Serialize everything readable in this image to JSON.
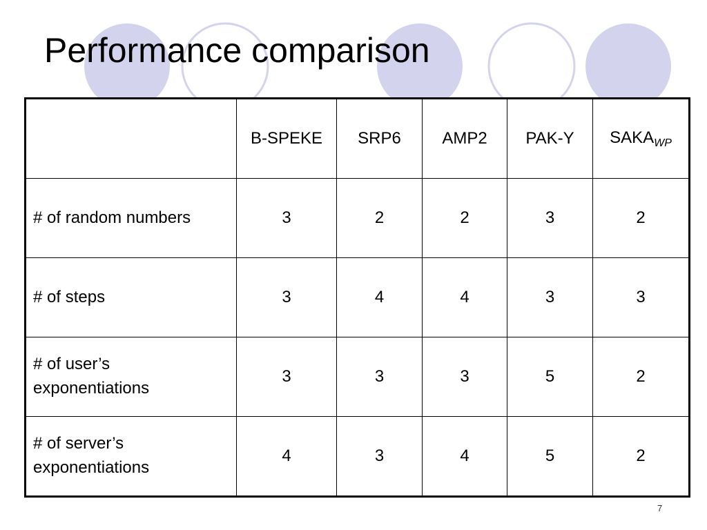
{
  "slide": {
    "title": "Performance comparison",
    "page_number": "7",
    "theme": {
      "circle_fill": "#D3D3ED",
      "circle_outline": "#D3D3ED",
      "text_color": "#000000",
      "table_border": "#000000"
    }
  },
  "table": {
    "columns": [
      {
        "label": "B-SPEKE"
      },
      {
        "label": "SRP6"
      },
      {
        "label": "AMP2"
      },
      {
        "label": "PAK-Y"
      },
      {
        "label": "SAKA",
        "subscript": "WP"
      }
    ],
    "rows": [
      {
        "label_lines": [
          "# of random numbers"
        ],
        "values": [
          "3",
          "2",
          "2",
          "3",
          "2"
        ]
      },
      {
        "label_lines": [
          "# of steps"
        ],
        "values": [
          "3",
          "4",
          "4",
          "3",
          "3"
        ]
      },
      {
        "label_lines": [
          "# of user’s",
          "exponentiations"
        ],
        "values": [
          "3",
          "3",
          "3",
          "5",
          "2"
        ]
      },
      {
        "label_lines": [
          "# of server’s",
          "exponentiations"
        ],
        "values": [
          "4",
          "3",
          "4",
          "5",
          "2"
        ]
      }
    ]
  }
}
